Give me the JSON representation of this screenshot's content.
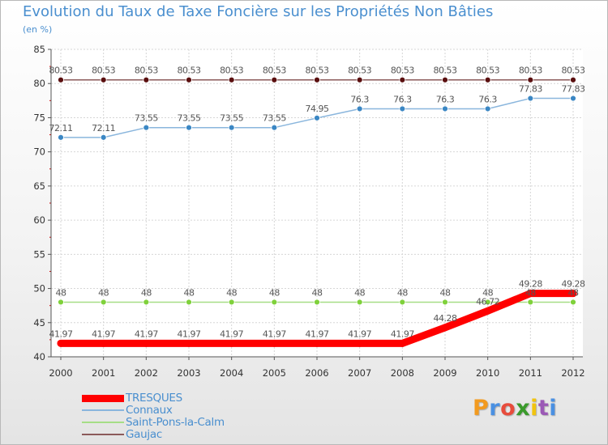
{
  "title": "Evolution du Taux de Taxe Foncière sur les Propriétés Non Bâties",
  "unit": "(en %)",
  "brand": {
    "text": "Proxiti",
    "letters": [
      "P",
      "r",
      "o",
      "x",
      "i",
      "t",
      "i"
    ],
    "colors": [
      "#f29a1f",
      "#4a90e2",
      "#e74c3c",
      "#3a9a2b",
      "#f1c40f",
      "#9b59b6",
      "#4a90e2"
    ]
  },
  "chart_data": {
    "type": "line",
    "title": "Evolution du Taux de Taxe Foncière sur les Propriétés Non Bâties",
    "ylabel": "(en %)",
    "xlabel": "",
    "x": [
      "2000",
      "2001",
      "2002",
      "2003",
      "2004",
      "2005",
      "2006",
      "2007",
      "2008",
      "2009",
      "2010",
      "2011",
      "2012"
    ],
    "ylim": [
      40,
      85
    ],
    "yticks": [
      "40",
      "45",
      "50",
      "55",
      "60",
      "65",
      "70",
      "75",
      "80",
      "85"
    ],
    "grid": true,
    "legend_position": "bottom-left",
    "series": [
      {
        "name": "TRESQUES",
        "color": "#ff0000",
        "marker": "#ff0000",
        "thick": true,
        "values": [
          41.97,
          41.97,
          41.97,
          41.97,
          41.97,
          41.97,
          41.97,
          41.97,
          41.97,
          44.28,
          46.72,
          49.28,
          49.28
        ],
        "labels": [
          "41.97",
          "41.97",
          "41.97",
          "41.97",
          "41.97",
          "41.97",
          "41.97",
          "41.97",
          "41.97",
          "44.28",
          "46.72",
          "49.28",
          "49.28"
        ]
      },
      {
        "name": "Connaux",
        "color": "#8ab6dd",
        "marker": "#3b87c4",
        "thick": false,
        "values": [
          72.11,
          72.11,
          73.55,
          73.55,
          73.55,
          73.55,
          74.95,
          76.3,
          76.3,
          76.3,
          76.3,
          77.83,
          77.83
        ],
        "labels": [
          "72.11",
          "72.11",
          "73.55",
          "73.55",
          "73.55",
          "73.55",
          "74.95",
          "76.3",
          "76.3",
          "76.3",
          "76.3",
          "77.83",
          "77.83"
        ]
      },
      {
        "name": "Saint-Pons-la-Calm",
        "color": "#a6de86",
        "marker": "#7fd13b",
        "thick": false,
        "values": [
          48,
          48,
          48,
          48,
          48,
          48,
          48,
          48,
          48,
          48,
          48,
          48,
          48
        ],
        "labels": [
          "48",
          "48",
          "48",
          "48",
          "48",
          "48",
          "48",
          "48",
          "48",
          "48",
          "48",
          "48",
          "48"
        ]
      },
      {
        "name": "Gaujac",
        "color": "#8b5a5a",
        "marker": "#5a0f0f",
        "thick": false,
        "values": [
          80.53,
          80.53,
          80.53,
          80.53,
          80.53,
          80.53,
          80.53,
          80.53,
          80.53,
          80.53,
          80.53,
          80.53,
          80.53
        ],
        "labels": [
          "80.53",
          "80.53",
          "80.53",
          "80.53",
          "80.53",
          "80.53",
          "80.53",
          "80.53",
          "80.53",
          "80.53",
          "80.53",
          "80.53",
          "80.53"
        ]
      }
    ]
  }
}
